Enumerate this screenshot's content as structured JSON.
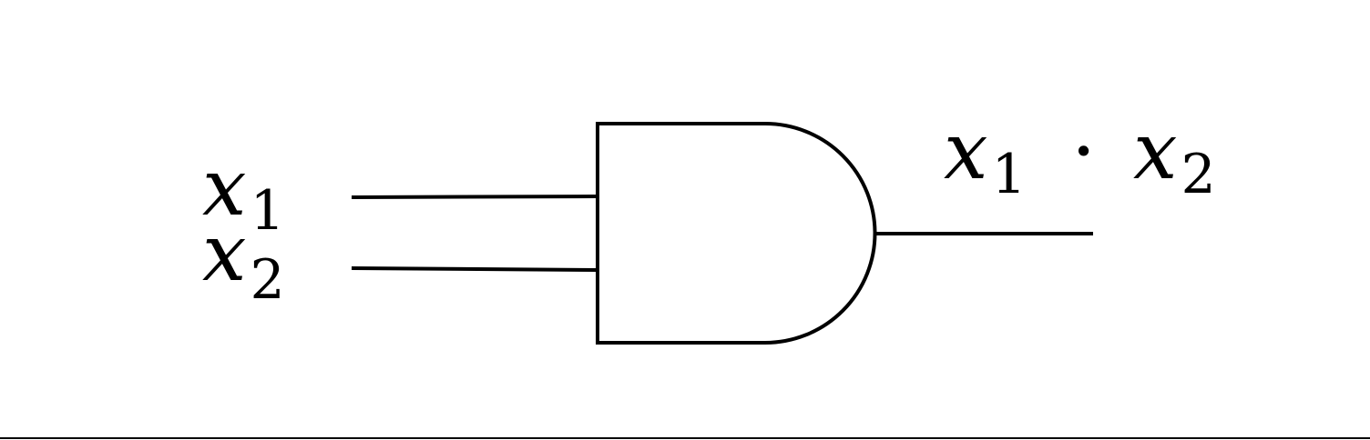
{
  "diagram": {
    "gate": "AND",
    "inputs": [
      {
        "var": "x",
        "sub": "1"
      },
      {
        "var": "x",
        "sub": "2"
      }
    ],
    "output": {
      "left": {
        "var": "x",
        "sub": "1"
      },
      "operator": "·",
      "right": {
        "var": "x",
        "sub": "2"
      }
    },
    "colors": {
      "stroke": "#000000",
      "background": "#ffffff"
    }
  }
}
